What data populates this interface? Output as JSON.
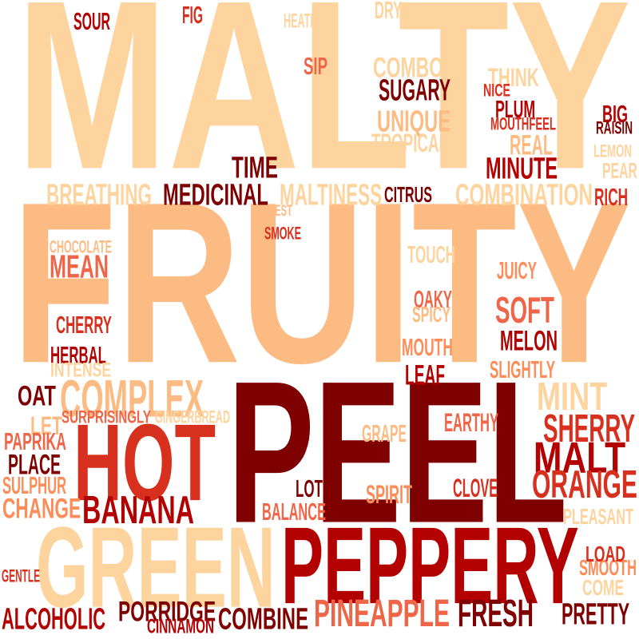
{
  "words": [
    "MALTY",
    "FRUITY",
    "PEEL",
    "HOT",
    "GREEN",
    "PEPPERY",
    "COMPLEX",
    "BANANA",
    "SHERRY",
    "MALT",
    "ORANGE",
    "PINEAPPLE",
    "FRESH",
    "ALCOHOLIC",
    "PORRIDGE",
    "COMBINE",
    "PRETTY",
    "MINT",
    "SOFT",
    "MEDICINAL",
    "TIME",
    "SUGARY",
    "UNIQUE",
    "MINUTE",
    "BREATHING",
    "MALTINESS",
    "COMBINATION",
    "MEAN",
    "CHANGE",
    "PLACE",
    "SMOOTH",
    "SOUR",
    "FIG",
    "DRY",
    "HEATHER",
    "SIP",
    "COMBO",
    "THINK",
    "NICE",
    "PLUM",
    "MOUTHFEEL",
    "BIG",
    "RAISIN",
    "TROPICAL",
    "REAL",
    "LEMON",
    "PEAR",
    "CITRUS",
    "RICH",
    "REST",
    "SMOKE",
    "CHOCOLATE",
    "TOUCH",
    "JUICY",
    "OAKY",
    "SPICY",
    "CHERRY",
    "HERBAL",
    "INTENSE",
    "MOUTH",
    "MELON",
    "LEAF",
    "SLIGHTLY",
    "OAT",
    "SURPRISINGLY",
    "GINGERBREAD",
    "LET",
    "EARTHY",
    "GRAPE",
    "PAPRIKA",
    "SULPHUR",
    "LOT",
    "SPIRIT",
    "CLOVE",
    "BALANCE",
    "PLEASANT",
    "GENTLE",
    "LOAD",
    "COME",
    "CINNAMON"
  ],
  "palette": [
    "#fdd49e",
    "#fdbb84",
    "#fc8d59",
    "#ef6548",
    "#d7301f",
    "#b30000",
    "#7f0000"
  ]
}
